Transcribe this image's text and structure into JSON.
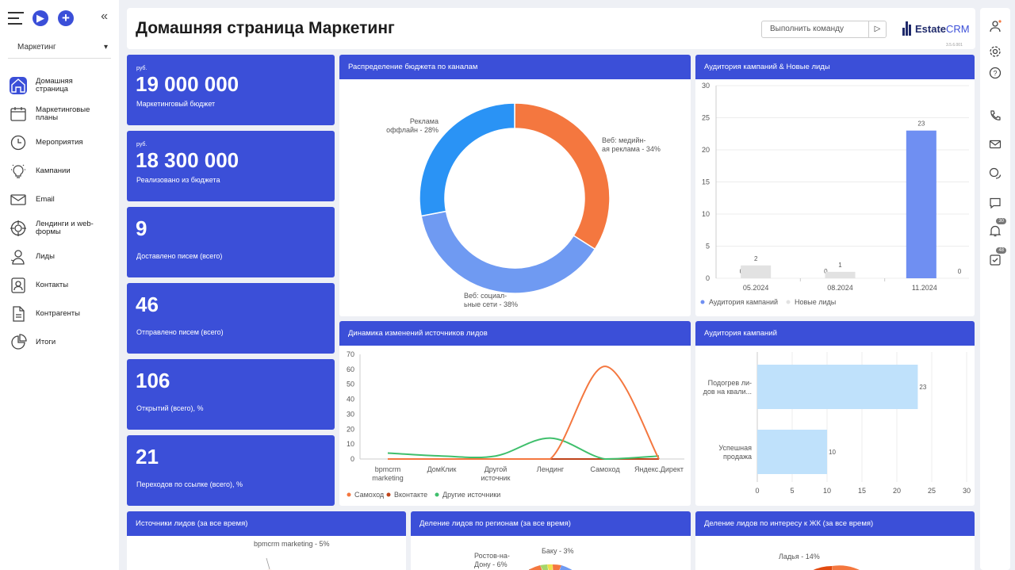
{
  "sidebar": {
    "select_value": "Маркетинг",
    "items": [
      {
        "label": "Домашняя страница",
        "icon": "home-icon",
        "active": true
      },
      {
        "label": "Маркетинговые планы",
        "icon": "calendar-icon"
      },
      {
        "label": "Мероприятия",
        "icon": "clock-icon"
      },
      {
        "label": "Кампании",
        "icon": "lightbulb-icon"
      },
      {
        "label": "Email",
        "icon": "mail-icon"
      },
      {
        "label": "Лендинги и web-формы",
        "icon": "target-icon"
      },
      {
        "label": "Лиды",
        "icon": "lead-icon"
      },
      {
        "label": "Контакты",
        "icon": "contact-icon"
      },
      {
        "label": "Контрагенты",
        "icon": "document-icon"
      },
      {
        "label": "Итоги",
        "icon": "pie-chart-icon"
      }
    ]
  },
  "header": {
    "title": "Домашняя страница Маркетинг",
    "command_placeholder": "Выполнить команду",
    "logo_main": "Estate",
    "logo_accent": "CRM",
    "version": "3.5.6.001"
  },
  "rightbar": {
    "notifications_badge": "30",
    "tasks_badge": "48"
  },
  "kpis": [
    {
      "currency": "руб.",
      "value": "19 000 000",
      "label": "Маркетинговый бюджет"
    },
    {
      "currency": "руб.",
      "value": "18 300 000",
      "label": "Реализовано из бюджета"
    },
    {
      "currency": "",
      "value": "9",
      "label": "Доставлено писем (всего)"
    },
    {
      "currency": "",
      "value": "46",
      "label": "Отправлено писем (всего)"
    },
    {
      "currency": "",
      "value": "106",
      "label": "Открытий (всего), %"
    },
    {
      "currency": "",
      "value": "21",
      "label": "Переходов по ссылке (всего), %"
    }
  ],
  "panels": {
    "budget": "Распределение бюджета по каналам",
    "audience_leads": "Аудитория кампаний & Новые лиды",
    "dynamics": "Динамика изменений источников лидов",
    "audience": "Аудитория кампаний",
    "sources": "Источники лидов (за все время)",
    "regions": "Деление лидов по регионам (за все время)",
    "interest": "Деление лидов по интересу к ЖК (за все время)"
  },
  "chart_data": [
    {
      "type": "pie",
      "title": "Распределение бюджета по каналам",
      "slices": [
        {
          "label": "Веб: медийная реклама - 34%",
          "value": 34,
          "color": "#f4773f"
        },
        {
          "label": "Веб: социальные сети - 38%",
          "value": 38,
          "color": "#6f9af2"
        },
        {
          "label": "Реклама оффлайн - 28%",
          "value": 28,
          "color": "#2a93f5"
        }
      ]
    },
    {
      "type": "bar",
      "title": "Аудитория кампаний & Новые лиды",
      "categories": [
        "05.2024",
        "08.2024",
        "11.2024"
      ],
      "series": [
        {
          "name": "Аудитория кампаний",
          "values": [
            0,
            0,
            23
          ],
          "color": "#6f8ff2"
        },
        {
          "name": "Новые лиды",
          "values": [
            2,
            1,
            0
          ],
          "color": "#e2e2e2"
        }
      ],
      "ylim": [
        0,
        30
      ],
      "yticks": [
        0,
        5,
        10,
        15,
        20,
        25,
        30
      ],
      "legend": "bottom-left"
    },
    {
      "type": "line",
      "title": "Динамика изменений источников лидов",
      "categories": [
        "bpmcrm marketing",
        "ДомКлик",
        "Другой источник",
        "Лендинг",
        "Самоход",
        "Яндекс.Директ"
      ],
      "series": [
        {
          "name": "Самоход",
          "values": [
            0,
            0,
            0,
            0,
            62,
            0
          ],
          "color": "#f4773f"
        },
        {
          "name": "Вконтакте",
          "values": [
            0,
            0,
            0,
            0,
            0,
            0
          ],
          "color": "#c0441a"
        },
        {
          "name": "Другие источники",
          "values": [
            4,
            2,
            2,
            14,
            0,
            2
          ],
          "color": "#3fbf6c"
        }
      ],
      "ylim": [
        0,
        70
      ],
      "yticks": [
        0,
        10,
        20,
        30,
        40,
        50,
        60,
        70
      ],
      "legend": "bottom-left"
    },
    {
      "type": "bar",
      "orientation": "horizontal",
      "title": "Аудитория кампаний",
      "categories": [
        "Подогрев лидов на квали...",
        "Успешная продажа"
      ],
      "values": [
        23,
        10
      ],
      "color": "#bfe1fb",
      "xlim": [
        0,
        30
      ],
      "xticks": [
        0,
        5,
        10,
        15,
        20,
        25,
        30
      ]
    },
    {
      "type": "pie",
      "title": "Источники лидов (за все время)",
      "slices": [
        {
          "label": "bpmcrm marketing - 5%",
          "value": 5
        }
      ]
    },
    {
      "type": "pie",
      "title": "Деление лидов по регионам (за все время)",
      "slices": [
        {
          "label": "Ростов-на-Дону - 6%",
          "value": 6
        },
        {
          "label": "Баку - 3%",
          "value": 3
        }
      ]
    },
    {
      "type": "pie",
      "title": "Деление лидов по интересу к ЖК (за все время)",
      "slices": [
        {
          "label": "Ладья - 14%",
          "value": 14
        }
      ]
    }
  ]
}
